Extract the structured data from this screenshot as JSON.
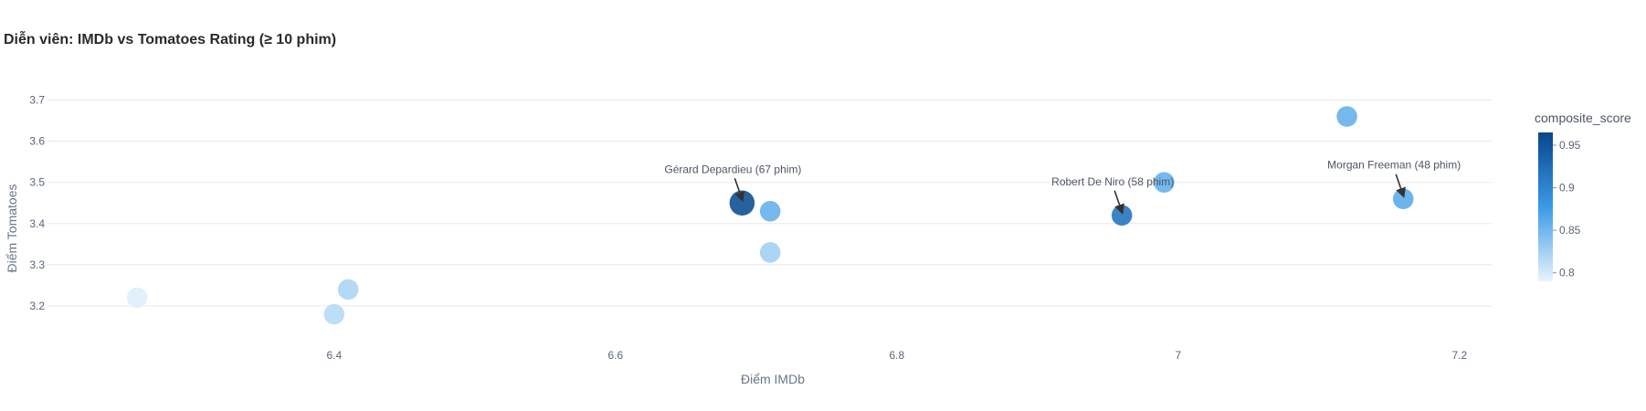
{
  "chart_data": {
    "type": "scatter",
    "title": "Diễn viên: IMDb vs Tomatoes Rating (≥ 10 phim)",
    "xlabel": "Điểm IMDb",
    "ylabel": "Điểm Tomatoes",
    "xlim": [
      6.22,
      7.22
    ],
    "ylim": [
      3.11,
      3.74
    ],
    "x_ticks": [
      6.4,
      6.6,
      6.8,
      7,
      7.2
    ],
    "y_ticks": [
      3.2,
      3.3,
      3.4,
      3.5,
      3.6,
      3.7
    ],
    "x_tick_labels": [
      "6.4",
      "6.6",
      "6.8",
      "7",
      "7.2"
    ],
    "y_tick_labels": [
      "3.2",
      "3.3",
      "3.4",
      "3.5",
      "3.6",
      "3.7"
    ],
    "grid": "horizontal",
    "colorbar": {
      "title": "composite_score",
      "range": [
        0.79,
        0.965
      ],
      "ticks": [
        0.8,
        0.85,
        0.9,
        0.95
      ],
      "tick_labels": [
        "0.8",
        "0.85",
        "0.9",
        "0.95"
      ],
      "color_low": "#e8f4fd",
      "color_mid": "#3a9ae6",
      "color_high": "#08468c",
      "placement": "right"
    },
    "points": [
      {
        "x": 6.26,
        "y": 3.22,
        "score": 0.795
      },
      {
        "x": 6.4,
        "y": 3.18,
        "score": 0.815
      },
      {
        "x": 6.41,
        "y": 3.24,
        "score": 0.82
      },
      {
        "x": 6.69,
        "y": 3.45,
        "score": 0.955
      },
      {
        "x": 6.71,
        "y": 3.43,
        "score": 0.855
      },
      {
        "x": 6.71,
        "y": 3.33,
        "score": 0.825
      },
      {
        "x": 6.96,
        "y": 3.42,
        "score": 0.915
      },
      {
        "x": 6.99,
        "y": 3.5,
        "score": 0.855
      },
      {
        "x": 7.12,
        "y": 3.66,
        "score": 0.855
      },
      {
        "x": 7.16,
        "y": 3.46,
        "score": 0.86
      }
    ],
    "annotations": [
      {
        "text": "Gérard Depardieu (67 phim)",
        "x": 6.69,
        "y": 3.45
      },
      {
        "text": "Robert De Niro (58 phim)",
        "x": 6.96,
        "y": 3.42
      },
      {
        "text": "Morgan Freeman (48 phim)",
        "x": 7.16,
        "y": 3.46
      }
    ]
  }
}
